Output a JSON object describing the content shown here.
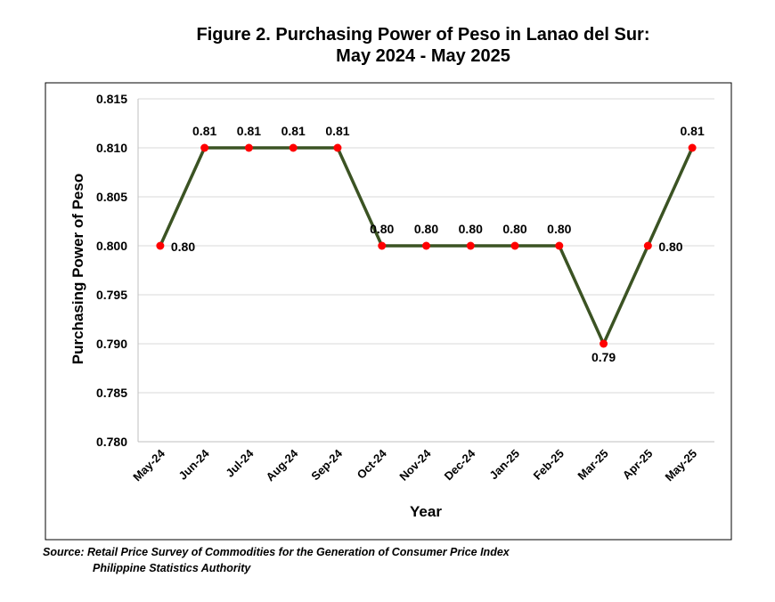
{
  "chart_data": {
    "type": "line",
    "title_line1": "Figure 2. Purchasing Power of Peso in Lanao del Sur:",
    "title_line2": "May 2024 - May 2025",
    "xlabel": "Year",
    "ylabel": "Purchasing Power of Peso",
    "ylim": [
      0.78,
      0.815
    ],
    "yticks": [
      "0.780",
      "0.785",
      "0.790",
      "0.795",
      "0.800",
      "0.805",
      "0.810",
      "0.815"
    ],
    "ytick_values": [
      0.78,
      0.785,
      0.79,
      0.795,
      0.8,
      0.805,
      0.81,
      0.815
    ],
    "categories": [
      "May-24",
      "Jun-24",
      "Jul-24",
      "Aug-24",
      "Sep-24",
      "Oct-24",
      "Nov-24",
      "Dec-24",
      "Jan-25",
      "Feb-25",
      "Mar-25",
      "Apr-25",
      "May-25"
    ],
    "values": [
      0.8,
      0.81,
      0.81,
      0.81,
      0.81,
      0.8,
      0.8,
      0.8,
      0.8,
      0.8,
      0.79,
      0.8,
      0.81
    ],
    "data_labels": [
      "0.80",
      "0.81",
      "0.81",
      "0.81",
      "0.81",
      "0.80",
      "0.80",
      "0.80",
      "0.80",
      "0.80",
      "0.79",
      "0.80",
      "0.81"
    ],
    "grid": true,
    "line_color": "#3b5323",
    "marker_color": "#ff0000"
  },
  "source": {
    "line1": "Source: Retail Price Survey of Commodities for the Generation of Consumer Price Index",
    "line2": "Philippine Statistics Authority"
  }
}
